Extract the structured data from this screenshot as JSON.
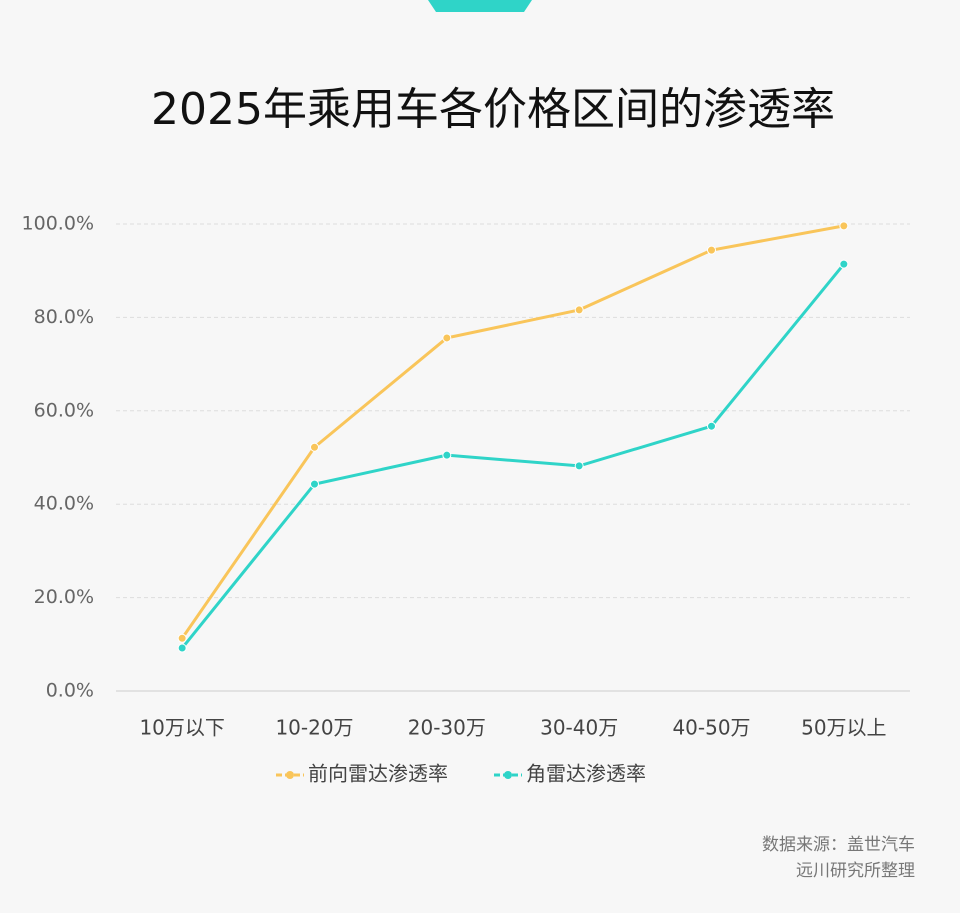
{
  "chart_data": {
    "type": "line",
    "title": "2025年乘用车各价格区间的渗透率",
    "categories": [
      "10万以下",
      "10-20万",
      "20-30万",
      "30-40万",
      "40-50万",
      "50万以上"
    ],
    "series": [
      {
        "name": "前向雷达渗透率",
        "color": "#f9c55a",
        "values": [
          11.3,
          52.2,
          75.6,
          81.6,
          94.4,
          99.6
        ]
      },
      {
        "name": "角雷达渗透率",
        "color": "#2fd4c8",
        "values": [
          9.2,
          44.3,
          50.5,
          48.2,
          56.7,
          91.4
        ]
      }
    ],
    "ylim": [
      0,
      100
    ],
    "yticks": [
      {
        "value": 0,
        "label": "0.0%"
      },
      {
        "value": 20,
        "label": "20.0%"
      },
      {
        "value": 40,
        "label": "40.0%"
      },
      {
        "value": 60,
        "label": "60.0%"
      },
      {
        "value": 80,
        "label": "80.0%"
      },
      {
        "value": 100,
        "label": "100.0%"
      }
    ],
    "grid": true,
    "legend": "bottom",
    "source": [
      "数据来源：盖世汽车",
      "远川研究所整理"
    ]
  }
}
